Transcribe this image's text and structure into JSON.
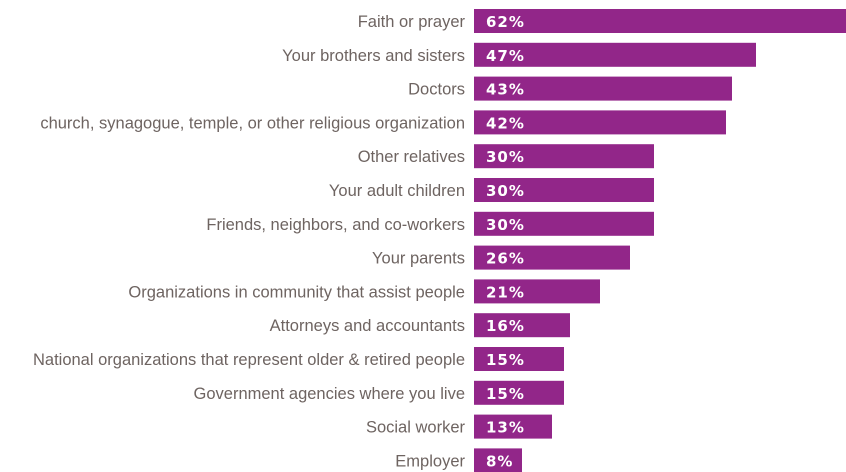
{
  "chart_data": {
    "type": "bar",
    "orientation": "horizontal",
    "categories": [
      "Faith or prayer",
      "Your brothers and sisters",
      "Doctors",
      "church, synagogue, temple, or other religious organization",
      "Other relatives",
      "Your adult children",
      "Friends, neighbors, and co-workers",
      "Your parents",
      "Organizations in community that assist people",
      "Attorneys and accountants",
      "National organizations that represent older & retired people",
      "Government agencies where you live",
      "Social worker",
      "Employer"
    ],
    "values": [
      62,
      47,
      43,
      42,
      30,
      30,
      30,
      26,
      21,
      16,
      15,
      15,
      13,
      8
    ],
    "value_labels": [
      "62%",
      "47%",
      "43%",
      "42%",
      "30%",
      "30%",
      "30%",
      "26%",
      "21%",
      "16%",
      "15%",
      "15%",
      "13%",
      "8%"
    ],
    "xlim": [
      0,
      62
    ],
    "grid": false,
    "legend": "none",
    "bar_color": "#922689",
    "label_color": "#6e6461",
    "value_label_color": "#ffffff"
  }
}
